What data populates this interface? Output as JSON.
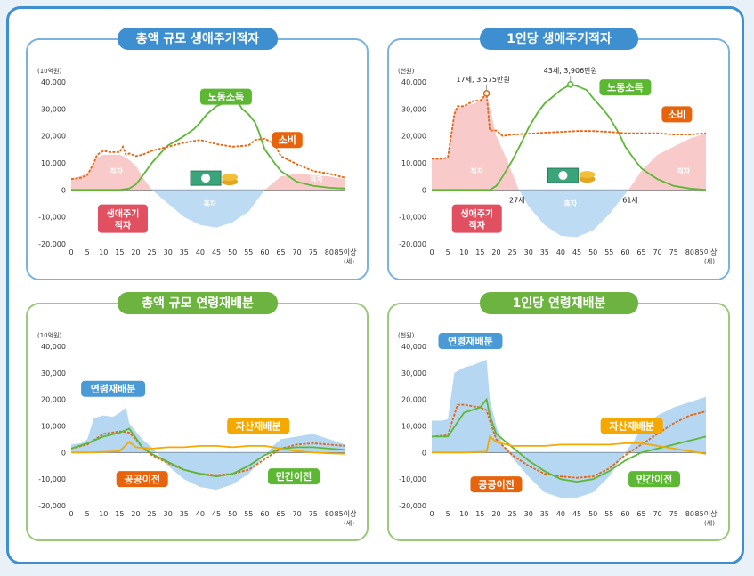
{
  "chart_data": [
    {
      "type": "area",
      "title": "총액 규모 생애주기적자",
      "ylabel": "(10억원)",
      "xunit": "(세)",
      "ylim": [
        -20000,
        40000
      ],
      "yticks": [
        -20000,
        -10000,
        0,
        10000,
        20000,
        30000,
        40000
      ],
      "xlim": [
        0,
        85
      ],
      "xticks": [
        "0",
        "5",
        "10",
        "15",
        "20",
        "25",
        "30",
        "35",
        "40",
        "45",
        "50",
        "55",
        "60",
        "65",
        "70",
        "75",
        "80",
        "85이상"
      ],
      "deficit_area": {
        "label": "적자",
        "x": [
          0,
          5,
          8,
          10,
          15,
          17,
          20,
          22,
          25
        ],
        "y": [
          4000,
          6000,
          12000,
          13000,
          13000,
          12000,
          9000,
          5000,
          0
        ]
      },
      "deficit_area_old": {
        "label": "적자",
        "x": [
          60,
          65,
          70,
          75,
          80,
          85
        ],
        "y": [
          0,
          5000,
          6000,
          5500,
          5000,
          4000
        ]
      },
      "surplus_area": {
        "label": "흑자",
        "x": [
          25,
          30,
          35,
          40,
          45,
          50,
          55,
          60
        ],
        "y": [
          0,
          -5000,
          -10000,
          -13000,
          -14000,
          -12000,
          -8000,
          0
        ]
      },
      "series": [
        {
          "name": "노동소득",
          "color": "#5cb833",
          "style": "solid",
          "x": [
            0,
            5,
            10,
            15,
            18,
            20,
            22,
            25,
            28,
            30,
            33,
            35,
            38,
            40,
            42,
            45,
            48,
            50,
            52,
            53,
            55,
            57,
            58,
            60,
            63,
            65,
            70,
            75,
            80,
            85
          ],
          "y": [
            0,
            0,
            0,
            0,
            500,
            2000,
            5000,
            10000,
            14000,
            16500,
            18500,
            20000,
            22500,
            25000,
            28000,
            31000,
            32500,
            33000,
            32000,
            30000,
            28000,
            25000,
            22000,
            15000,
            10000,
            7000,
            3000,
            1500,
            800,
            500
          ]
        },
        {
          "name": "소비",
          "color": "#e8640c",
          "style": "dashed",
          "x": [
            0,
            3,
            5,
            7,
            8,
            10,
            12,
            15,
            16,
            17,
            18,
            20,
            22,
            25,
            30,
            35,
            40,
            45,
            50,
            55,
            57,
            60,
            63,
            65,
            70,
            75,
            80,
            85
          ],
          "y": [
            4000,
            4500,
            5500,
            10000,
            13000,
            14500,
            14000,
            14000,
            16000,
            13000,
            13500,
            12500,
            13000,
            14500,
            16000,
            17500,
            18500,
            17000,
            16000,
            16500,
            18500,
            19000,
            17000,
            12500,
            9500,
            7000,
            6000,
            4500
          ]
        }
      ],
      "labels": {
        "deficit": "적자",
        "surplus": "흑자",
        "lifecycle": [
          "생애주기",
          "적자"
        ]
      }
    },
    {
      "type": "area",
      "title": "1인당 생애주기적자",
      "ylabel": "(천원)",
      "xunit": "(세)",
      "ylim": [
        -20000,
        40000
      ],
      "yticks": [
        -20000,
        -10000,
        0,
        10000,
        20000,
        30000,
        40000
      ],
      "xlim": [
        0,
        85
      ],
      "xticks": [
        "0",
        "5",
        "10",
        "15",
        "20",
        "25",
        "30",
        "35",
        "40",
        "45",
        "50",
        "55",
        "60",
        "65",
        "70",
        "75",
        "80",
        "85이상"
      ],
      "deficit_area": {
        "label": "적자",
        "x": [
          0,
          5,
          7,
          10,
          13,
          15,
          17,
          20,
          23,
          25,
          27
        ],
        "y": [
          11500,
          12000,
          30000,
          31000,
          32000,
          33000,
          35750,
          20000,
          12000,
          6000,
          0
        ]
      },
      "deficit_area_old": {
        "label": "적자",
        "x": [
          61,
          65,
          70,
          75,
          80,
          85
        ],
        "y": [
          0,
          7000,
          13000,
          16000,
          19000,
          21000
        ]
      },
      "surplus_area": {
        "label": "흑자",
        "x": [
          27,
          30,
          35,
          40,
          45,
          50,
          55,
          61
        ],
        "y": [
          0,
          -6000,
          -13000,
          -17000,
          -17500,
          -15000,
          -9000,
          0
        ]
      },
      "series": [
        {
          "name": "노동소득",
          "color": "#5cb833",
          "style": "solid",
          "x": [
            0,
            15,
            18,
            20,
            22,
            25,
            28,
            30,
            33,
            35,
            38,
            40,
            43,
            45,
            48,
            50,
            53,
            55,
            58,
            60,
            63,
            65,
            68,
            70,
            73,
            75,
            80,
            85
          ],
          "y": [
            0,
            0,
            0,
            1500,
            5000,
            11000,
            18000,
            23000,
            29000,
            32000,
            35000,
            37000,
            39060,
            38500,
            37000,
            34000,
            30000,
            27000,
            21000,
            16000,
            11000,
            8000,
            5500,
            4000,
            2500,
            1500,
            500,
            0
          ]
        },
        {
          "name": "소비",
          "color": "#e8640c",
          "style": "dashed",
          "x": [
            0,
            3,
            5,
            7,
            8,
            10,
            13,
            15,
            17,
            18,
            20,
            22,
            25,
            30,
            35,
            40,
            45,
            50,
            55,
            60,
            65,
            70,
            75,
            80,
            85
          ],
          "y": [
            11500,
            11500,
            12000,
            28000,
            31000,
            31000,
            33000,
            33000,
            35750,
            22000,
            22000,
            20000,
            20500,
            20800,
            21200,
            21500,
            21800,
            21800,
            21500,
            21000,
            21000,
            21000,
            20500,
            20500,
            21000
          ]
        }
      ],
      "annotations": [
        {
          "text": "17세, 3,575만원",
          "x": 17,
          "y": 35750
        },
        {
          "text": "43세, 3,906만원",
          "x": 43,
          "y": 39060
        },
        {
          "text": "27세",
          "x": 27,
          "y": 0
        },
        {
          "text": "61세",
          "x": 61,
          "y": 0
        }
      ],
      "labels": {
        "deficit": "적자",
        "surplus": "흑자",
        "lifecycle": [
          "생애주기",
          "적자"
        ]
      }
    },
    {
      "type": "line",
      "title": "총액 규모 연령재배분",
      "ylabel": "(10억원)",
      "xunit": "(세)",
      "ylim": [
        -20000,
        40000
      ],
      "yticks": [
        -20000,
        -10000,
        0,
        10000,
        20000,
        30000,
        40000
      ],
      "xlim": [
        0,
        85
      ],
      "xticks": [
        "0",
        "5",
        "10",
        "15",
        "20",
        "25",
        "30",
        "35",
        "40",
        "45",
        "50",
        "55",
        "60",
        "65",
        "70",
        "75",
        "80",
        "85이상"
      ],
      "band": {
        "name": "연령재배분",
        "color": "#a8d0ef",
        "x": [
          0,
          3,
          5,
          7,
          10,
          13,
          15,
          17,
          18,
          20,
          22,
          25,
          30,
          35,
          40,
          45,
          50,
          55,
          60,
          63,
          65,
          70,
          75,
          80,
          85
        ],
        "y": [
          3000,
          3500,
          5000,
          13000,
          14000,
          13500,
          15000,
          17000,
          11000,
          8000,
          5000,
          2000,
          -5000,
          -10000,
          -13000,
          -14000,
          -12000,
          -8000,
          -1000,
          3000,
          5000,
          6000,
          7000,
          5000,
          3000
        ]
      },
      "series": [
        {
          "name": "공공이전",
          "color": "#e8640c",
          "style": "dashed",
          "x": [
            0,
            5,
            10,
            15,
            18,
            20,
            22,
            25,
            30,
            35,
            40,
            45,
            50,
            55,
            60,
            65,
            70,
            75,
            80,
            85
          ],
          "y": [
            1500,
            3000,
            7000,
            8000,
            7500,
            5000,
            2000,
            -1000,
            -4000,
            -6500,
            -8000,
            -8500,
            -8000,
            -6500,
            -2500,
            1500,
            3000,
            3500,
            3000,
            2500
          ]
        },
        {
          "name": "민간이전",
          "color": "#5cb833",
          "style": "solid",
          "x": [
            0,
            5,
            10,
            15,
            18,
            20,
            22,
            25,
            30,
            35,
            40,
            45,
            50,
            55,
            60,
            65,
            70,
            75,
            80,
            85
          ],
          "y": [
            1500,
            3500,
            6000,
            7500,
            9000,
            5500,
            2000,
            -500,
            -3500,
            -6500,
            -8000,
            -9000,
            -8000,
            -5000,
            -1000,
            1500,
            2000,
            2000,
            1500,
            1000
          ]
        },
        {
          "name": "자산재배분",
          "color": "#f4a800",
          "style": "solid",
          "x": [
            0,
            5,
            10,
            15,
            18,
            20,
            25,
            30,
            35,
            40,
            45,
            50,
            55,
            60,
            65,
            70,
            75,
            80,
            85
          ],
          "y": [
            0,
            0,
            200,
            500,
            4000,
            2000,
            1500,
            2000,
            2000,
            2500,
            2500,
            2000,
            2500,
            2500,
            1500,
            500,
            0,
            -300,
            -500
          ]
        }
      ]
    },
    {
      "type": "line",
      "title": "1인당 연령재배분",
      "ylabel": "(천원)",
      "xunit": "(세)",
      "ylim": [
        -20000,
        40000
      ],
      "yticks": [
        -20000,
        -10000,
        0,
        10000,
        20000,
        30000,
        40000
      ],
      "xlim": [
        0,
        85
      ],
      "xticks": [
        "0",
        "5",
        "10",
        "15",
        "20",
        "25",
        "30",
        "35",
        "40",
        "45",
        "50",
        "55",
        "60",
        "65",
        "70",
        "75",
        "80",
        "85이상"
      ],
      "band": {
        "name": "연령재배분",
        "color": "#a8d0ef",
        "x": [
          0,
          3,
          5,
          7,
          10,
          13,
          15,
          17,
          18,
          20,
          22,
          25,
          30,
          35,
          40,
          45,
          50,
          55,
          60,
          63,
          65,
          70,
          75,
          80,
          85
        ],
        "y": [
          12000,
          12000,
          12500,
          30000,
          32000,
          33000,
          34000,
          35000,
          20000,
          10000,
          3000,
          -2000,
          -9000,
          -15000,
          -17000,
          -17000,
          -15000,
          -9000,
          0,
          5000,
          9000,
          14000,
          17000,
          19000,
          21000
        ]
      },
      "series": [
        {
          "name": "공공이전",
          "color": "#e8640c",
          "style": "dashed",
          "x": [
            0,
            5,
            8,
            10,
            15,
            17,
            18,
            20,
            25,
            30,
            35,
            40,
            45,
            50,
            55,
            60,
            65,
            70,
            75,
            80,
            85
          ],
          "y": [
            6000,
            6500,
            18000,
            18000,
            17000,
            16000,
            12000,
            5000,
            -1000,
            -5000,
            -8000,
            -9000,
            -9500,
            -9000,
            -6000,
            -1000,
            3000,
            7000,
            11000,
            14000,
            15500
          ]
        },
        {
          "name": "민간이전",
          "color": "#5cb833",
          "style": "solid",
          "x": [
            0,
            5,
            10,
            15,
            17,
            18,
            20,
            25,
            30,
            35,
            40,
            45,
            50,
            55,
            60,
            65,
            70,
            75,
            80,
            85
          ],
          "y": [
            6000,
            6000,
            15000,
            17000,
            20000,
            14000,
            7000,
            2000,
            -3000,
            -7000,
            -10000,
            -11000,
            -10000,
            -7000,
            -3000,
            0,
            1500,
            3000,
            4500,
            6000
          ]
        },
        {
          "name": "자산재배분",
          "color": "#f4a800",
          "style": "solid",
          "x": [
            0,
            10,
            15,
            17,
            18,
            20,
            25,
            30,
            35,
            40,
            45,
            50,
            55,
            60,
            65,
            70,
            75,
            80,
            85
          ],
          "y": [
            0,
            0,
            200,
            300,
            6000,
            4000,
            2500,
            2500,
            2500,
            3000,
            3000,
            3000,
            3000,
            3500,
            3500,
            2500,
            1500,
            500,
            -500
          ]
        }
      ]
    }
  ]
}
